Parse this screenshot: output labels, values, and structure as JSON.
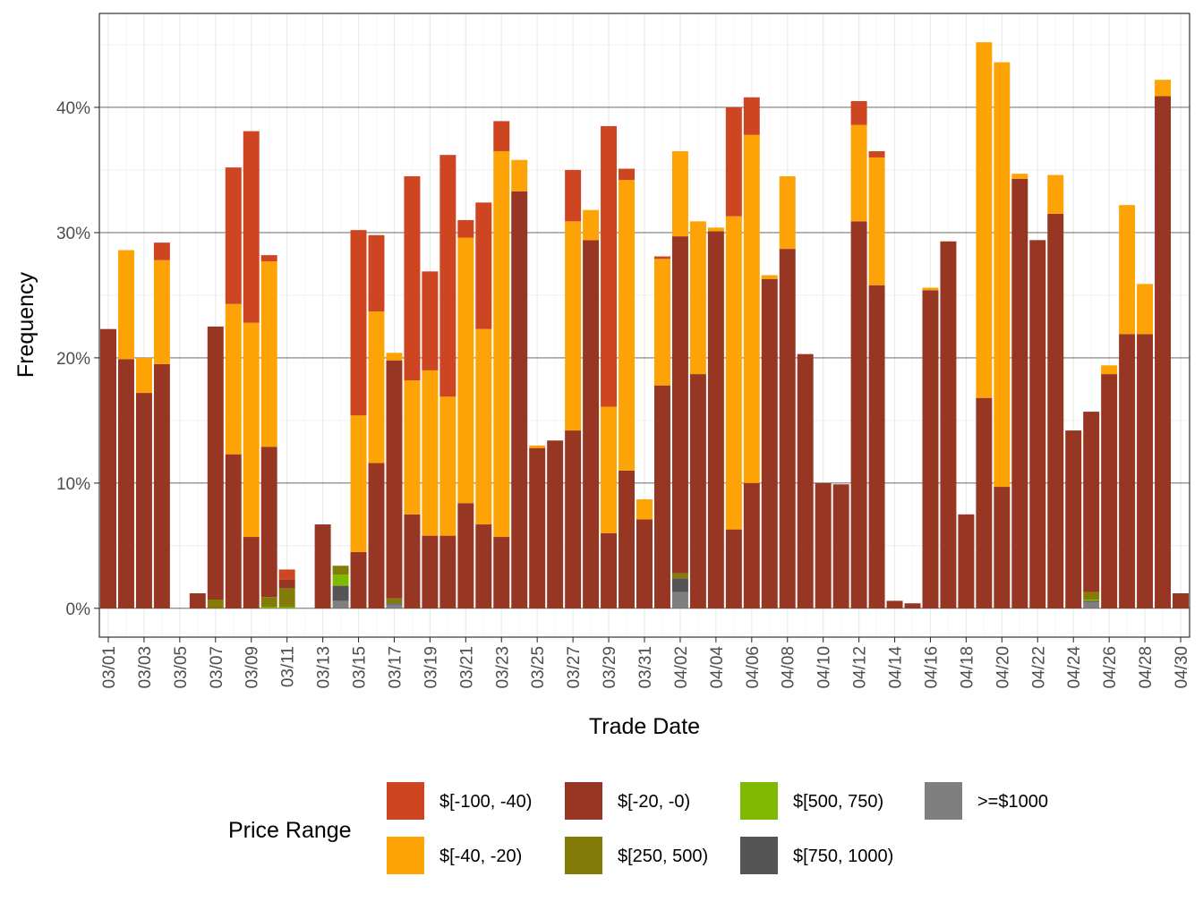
{
  "chart_data": {
    "type": "bar",
    "stacked": true,
    "xlabel": "Trade Date",
    "ylabel": "Frequency",
    "ylim": [
      -0.023,
      0.475
    ],
    "yticks": [
      0,
      0.1,
      0.2,
      0.3,
      0.4
    ],
    "ytick_labels": [
      "0%",
      "10%",
      "20%",
      "30%",
      "40%"
    ],
    "categories": [
      "03/01",
      "03/02",
      "03/03",
      "03/04",
      "03/05",
      "03/06",
      "03/07",
      "03/08",
      "03/09",
      "03/10",
      "03/11",
      "03/12",
      "03/13",
      "03/14",
      "03/15",
      "03/16",
      "03/17",
      "03/18",
      "03/19",
      "03/20",
      "03/21",
      "03/22",
      "03/23",
      "03/24",
      "03/25",
      "03/26",
      "03/27",
      "03/28",
      "03/29",
      "03/30",
      "03/31",
      "04/01",
      "04/02",
      "04/03",
      "04/04",
      "04/05",
      "04/06",
      "04/07",
      "04/08",
      "04/09",
      "04/10",
      "04/11",
      "04/12",
      "04/13",
      "04/14",
      "04/15",
      "04/16",
      "04/17",
      "04/18",
      "04/19",
      "04/20",
      "04/21",
      "04/22",
      "04/23",
      "04/24",
      "04/25",
      "04/26",
      "04/27",
      "04/28",
      "04/29",
      "04/30"
    ],
    "xtick_labels": [
      "03/01",
      "03/03",
      "03/05",
      "03/07",
      "03/09",
      "03/11",
      "03/13",
      "03/15",
      "03/17",
      "03/19",
      "03/21",
      "03/23",
      "03/25",
      "03/27",
      "03/29",
      "03/31",
      "04/02",
      "04/04",
      "04/06",
      "04/08",
      "04/10",
      "04/12",
      "04/14",
      "04/16",
      "04/18",
      "04/20",
      "04/22",
      "04/24",
      "04/26",
      "04/28",
      "04/30"
    ],
    "legend_title": "Price Range",
    "legend_position": "bottom",
    "grid": true,
    "series": [
      {
        "name": ">=$1000",
        "color": "#7f7f7f",
        "values": [
          0,
          0,
          0,
          0,
          0,
          0,
          0,
          0,
          0,
          0,
          0,
          0,
          0,
          0.006,
          0,
          0,
          0.003,
          0,
          0,
          0,
          0,
          0,
          0,
          0,
          0,
          0,
          0,
          0,
          0,
          0,
          0,
          0,
          0.013,
          0,
          0,
          0,
          0,
          0,
          0,
          0,
          0,
          0,
          0,
          0,
          0,
          0,
          0,
          0,
          0,
          0,
          0,
          0,
          0,
          0,
          0,
          0.005,
          0,
          0,
          0,
          0,
          0
        ]
      },
      {
        "name": "$[750, 1000)",
        "color": "#555555",
        "values": [
          0,
          0,
          0,
          0,
          0,
          0,
          0,
          0,
          0,
          0,
          0,
          0,
          0,
          0.012,
          0,
          0,
          0.001,
          0,
          0,
          0,
          0,
          0,
          0,
          0,
          0,
          0,
          0,
          0,
          0,
          0,
          0,
          0,
          0.011,
          0,
          0,
          0,
          0,
          0,
          0,
          0,
          0,
          0,
          0,
          0,
          0,
          0,
          0,
          0,
          0,
          0,
          0,
          0,
          0,
          0,
          0,
          0.001,
          0,
          0,
          0,
          0,
          0
        ]
      },
      {
        "name": "$[500, 750)",
        "color": "#7fba00",
        "values": [
          0,
          0,
          0,
          0,
          0,
          0,
          0,
          0,
          0,
          0.001,
          0.001,
          0,
          0,
          0.009,
          0,
          0,
          0,
          0,
          0,
          0,
          0,
          0,
          0,
          0,
          0,
          0,
          0,
          0,
          0,
          0,
          0,
          0,
          0,
          0,
          0,
          0,
          0,
          0,
          0,
          0,
          0,
          0,
          0,
          0,
          0,
          0,
          0,
          0,
          0,
          0,
          0,
          0,
          0,
          0,
          0,
          0.001,
          0,
          0,
          0,
          0,
          0
        ]
      },
      {
        "name": "$[250, 500)",
        "color": "#857b09",
        "values": [
          0,
          0,
          0,
          0,
          0,
          0,
          0.007,
          0,
          0,
          0.008,
          0.015,
          0,
          0,
          0.007,
          0,
          0,
          0.004,
          0,
          0,
          0,
          0,
          0,
          0,
          0,
          0,
          0,
          0,
          0,
          0,
          0,
          0,
          0,
          0.004,
          0,
          0,
          0,
          0,
          0,
          0,
          0,
          0,
          0,
          0,
          0,
          0,
          0,
          0,
          0,
          0,
          0,
          0,
          0,
          0,
          0,
          0,
          0.006,
          0,
          0,
          0,
          0,
          0
        ]
      },
      {
        "name": "$[-20, -0)",
        "color": "#973623",
        "values": [
          0.223,
          0.199,
          0.172,
          0.195,
          0,
          0.012,
          0.218,
          0.123,
          0.057,
          0.12,
          0.007,
          0,
          0.067,
          0,
          0.045,
          0.116,
          0.19,
          0.075,
          0.058,
          0.058,
          0.084,
          0.067,
          0.057,
          0.333,
          0.128,
          0.134,
          0.142,
          0.294,
          0.06,
          0.11,
          0.071,
          0.178,
          0.269,
          0.187,
          0.301,
          0.063,
          0.1,
          0.263,
          0.287,
          0.203,
          0.1,
          0.099,
          0.309,
          0.258,
          0.006,
          0.004,
          0.254,
          0.293,
          0.075,
          0.168,
          0.097,
          0.343,
          0.294,
          0.315,
          0.142,
          0.144,
          0.187,
          0.219,
          0.219,
          0.409,
          0.012
        ]
      },
      {
        "name": "$[-40, -20)",
        "color": "#fea305",
        "values": [
          0,
          0.087,
          0.028,
          0.083,
          0,
          0,
          0,
          0.12,
          0.171,
          0.148,
          0,
          0,
          0,
          0,
          0.109,
          0.121,
          0.006,
          0.107,
          0.132,
          0.111,
          0.212,
          0.156,
          0.308,
          0.025,
          0.002,
          0,
          0.167,
          0.024,
          0.101,
          0.232,
          0.016,
          0.101,
          0.068,
          0.122,
          0.003,
          0.25,
          0.278,
          0.003,
          0.058,
          0,
          0,
          0,
          0.077,
          0.102,
          0,
          0,
          0.002,
          0,
          0,
          0.284,
          0.339,
          0.004,
          0,
          0.031,
          0,
          0,
          0.007,
          0.103,
          0.04,
          0.013,
          0
        ]
      },
      {
        "name": "$[-100, -40)",
        "color": "#ce4522",
        "values": [
          0,
          0,
          0,
          0.014,
          0,
          0,
          0,
          0.109,
          0.153,
          0.005,
          0.008,
          0,
          0,
          0,
          0.148,
          0.061,
          0,
          0.163,
          0.079,
          0.193,
          0.014,
          0.101,
          0.024,
          0,
          0,
          0,
          0.041,
          0,
          0.224,
          0.009,
          0,
          0.002,
          0,
          0,
          0,
          0.087,
          0.03,
          0,
          0,
          0,
          0,
          0,
          0.019,
          0.005,
          0,
          0,
          0,
          0,
          0,
          0,
          0,
          0,
          0,
          0,
          0,
          0,
          0,
          0,
          0,
          0,
          0
        ]
      }
    ]
  },
  "legend_order": [
    "$[-100, -40)",
    "$[-40, -20)",
    "$[-20, -0)",
    "$[250, 500)",
    "$[500, 750)",
    "$[750, 1000)",
    ">=$1000"
  ]
}
